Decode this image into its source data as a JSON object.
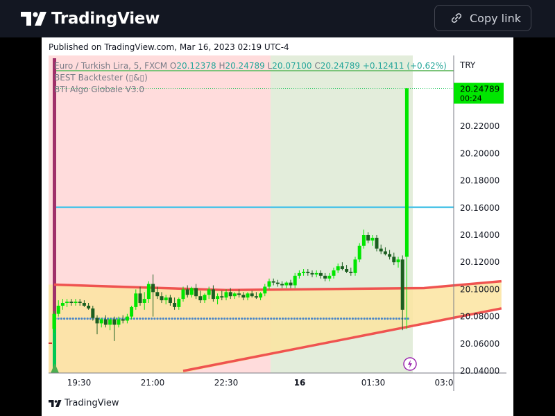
{
  "header": {
    "brand": "TradingView",
    "copy_label": "Copy link"
  },
  "published": "Published on TradingView.com, Mar 16, 2023 02:19 UTC-4",
  "legend": {
    "symbol": "Euro / Turkish Lira, 5, FXCM",
    "o_label": "O",
    "o": "20.12378",
    "h_label": "H",
    "h": "20.24789",
    "l_label": "L",
    "l": "20.07100",
    "c_label": "C",
    "c": "20.24789",
    "change": "+0.12411 (+0.62%)",
    "study1": "BEST Backtester (▯&▯)",
    "study2": "BTI Algo Globale V3.0"
  },
  "footer": {
    "brand": "TradingView"
  },
  "colors": {
    "up": "#00e600",
    "down": "#1b5e20",
    "ema": "#ef5350",
    "hline": "#4dc4e8",
    "dots": "#4a86c8",
    "bg_red": "#ffdcdc",
    "bg_green": "#e3eddb",
    "fill_zone": "#fce4a0"
  },
  "chart_data": {
    "type": "candlestick",
    "currency": "TRY",
    "y_ticks": [
      "20.22000",
      "20.20000",
      "20.18000",
      "20.16000",
      "20.14000",
      "20.12000",
      "20.10000",
      "20.08000",
      "20.06000",
      "20.04000"
    ],
    "x_ticks": [
      "19:30",
      "21:00",
      "22:30",
      "16",
      "01:30",
      "03:0"
    ],
    "price_label": "20.24789",
    "countdown": "00:24",
    "ylim": [
      20.04,
      20.25
    ],
    "candles": [
      [
        20.071,
        20.084,
        20.068,
        20.082
      ],
      [
        20.082,
        20.092,
        20.08,
        20.088
      ],
      [
        20.088,
        20.093,
        20.085,
        20.09
      ],
      [
        20.09,
        20.093,
        20.087,
        20.091
      ],
      [
        20.091,
        20.093,
        20.088,
        20.09
      ],
      [
        20.09,
        20.093,
        20.088,
        20.091
      ],
      [
        20.091,
        20.093,
        20.088,
        20.09
      ],
      [
        20.09,
        20.092,
        20.087,
        20.088
      ],
      [
        20.088,
        20.09,
        20.085,
        20.086
      ],
      [
        20.086,
        20.088,
        20.077,
        20.079
      ],
      [
        20.079,
        20.081,
        20.067,
        20.075
      ],
      [
        20.075,
        20.079,
        20.072,
        20.078
      ],
      [
        20.078,
        20.081,
        20.072,
        20.074
      ],
      [
        20.074,
        20.079,
        20.07,
        20.078
      ],
      [
        20.078,
        20.08,
        20.062,
        20.074
      ],
      [
        20.074,
        20.08,
        20.072,
        20.078
      ],
      [
        20.078,
        20.081,
        20.075,
        20.077
      ],
      [
        20.077,
        20.082,
        20.075,
        20.08
      ],
      [
        20.08,
        20.088,
        20.078,
        20.087
      ],
      [
        20.087,
        20.1,
        20.085,
        20.097
      ],
      [
        20.097,
        20.102,
        20.088,
        20.09
      ],
      [
        20.09,
        20.098,
        20.085,
        20.093
      ],
      [
        20.093,
        20.106,
        20.09,
        20.104
      ],
      [
        20.104,
        20.111,
        20.08,
        20.098
      ],
      [
        20.098,
        20.102,
        20.093,
        20.095
      ],
      [
        20.095,
        20.098,
        20.09,
        20.092
      ],
      [
        20.092,
        20.096,
        20.089,
        20.094
      ],
      [
        20.094,
        20.096,
        20.088,
        20.09
      ],
      [
        20.09,
        20.094,
        20.085,
        20.087
      ],
      [
        20.087,
        20.094,
        20.085,
        20.093
      ],
      [
        20.093,
        20.102,
        20.091,
        20.1
      ],
      [
        20.1,
        20.103,
        20.094,
        20.096
      ],
      [
        20.096,
        20.102,
        20.094,
        20.101
      ],
      [
        20.101,
        20.104,
        20.093,
        20.095
      ],
      [
        20.095,
        20.099,
        20.09,
        20.092
      ],
      [
        20.092,
        20.097,
        20.09,
        20.096
      ],
      [
        20.096,
        20.102,
        20.093,
        20.1
      ],
      [
        20.1,
        20.103,
        20.091,
        20.093
      ],
      [
        20.093,
        20.097,
        20.089,
        20.095
      ],
      [
        20.095,
        20.099,
        20.092,
        20.094
      ],
      [
        20.094,
        20.1,
        20.092,
        20.098
      ],
      [
        20.098,
        20.101,
        20.093,
        20.095
      ],
      [
        20.095,
        20.098,
        20.093,
        20.097
      ],
      [
        20.097,
        20.1,
        20.094,
        20.096
      ],
      [
        20.096,
        20.098,
        20.092,
        20.094
      ],
      [
        20.094,
        20.098,
        20.092,
        20.097
      ],
      [
        20.097,
        20.099,
        20.094,
        20.095
      ],
      [
        20.095,
        20.098,
        20.093,
        20.094
      ],
      [
        20.094,
        20.098,
        20.092,
        20.097
      ],
      [
        20.097,
        20.104,
        20.095,
        20.102
      ],
      [
        20.102,
        20.108,
        20.1,
        20.106
      ],
      [
        20.106,
        20.108,
        20.103,
        20.105
      ],
      [
        20.105,
        20.107,
        20.102,
        20.104
      ],
      [
        20.104,
        20.106,
        20.101,
        20.103
      ],
      [
        20.103,
        20.106,
        20.101,
        20.105
      ],
      [
        20.105,
        20.107,
        20.101,
        20.103
      ],
      [
        20.103,
        20.112,
        20.101,
        20.11
      ],
      [
        20.11,
        20.114,
        20.108,
        20.112
      ],
      [
        20.112,
        20.115,
        20.11,
        20.113
      ],
      [
        20.113,
        20.115,
        20.11,
        20.112
      ],
      [
        20.112,
        20.114,
        20.109,
        20.111
      ],
      [
        20.111,
        20.114,
        20.109,
        20.112
      ],
      [
        20.112,
        20.114,
        20.108,
        20.11
      ],
      [
        20.11,
        20.112,
        20.106,
        20.108
      ],
      [
        20.108,
        20.112,
        20.106,
        20.11
      ],
      [
        20.11,
        20.116,
        20.108,
        20.114
      ],
      [
        20.114,
        20.119,
        20.112,
        20.117
      ],
      [
        20.117,
        20.12,
        20.114,
        20.115
      ],
      [
        20.115,
        20.118,
        20.112,
        20.113
      ],
      [
        20.113,
        20.116,
        20.11,
        20.112
      ],
      [
        20.112,
        20.124,
        20.11,
        20.122
      ],
      [
        20.122,
        20.134,
        20.12,
        20.132
      ],
      [
        20.132,
        20.144,
        20.13,
        20.14
      ],
      [
        20.14,
        20.142,
        20.134,
        20.136
      ],
      [
        20.136,
        20.14,
        20.132,
        20.138
      ],
      [
        20.138,
        20.14,
        20.128,
        20.13
      ],
      [
        20.13,
        20.133,
        20.126,
        20.128
      ],
      [
        20.128,
        20.131,
        20.125,
        20.126
      ],
      [
        20.126,
        20.129,
        20.122,
        20.124
      ],
      [
        20.124,
        20.127,
        20.118,
        20.12
      ],
      [
        20.12,
        20.124,
        20.116,
        20.122
      ],
      [
        20.122,
        20.125,
        20.07,
        20.085
      ],
      [
        20.124,
        20.248,
        20.071,
        20.248
      ]
    ],
    "ema_line": [
      [
        0,
        20.1035
      ],
      [
        40,
        20.0995
      ],
      [
        86,
        20.101
      ],
      [
        104,
        20.106
      ]
    ],
    "support_line": [
      [
        30,
        20.04
      ],
      [
        104,
        20.086
      ]
    ],
    "h_line": 20.1605,
    "dots_level": 20.0785
  }
}
